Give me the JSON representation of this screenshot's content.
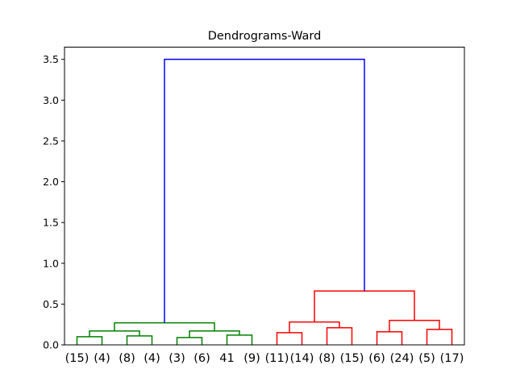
{
  "chart_data": {
    "type": "dendrogram",
    "title": "Dendrograms-Ward",
    "xlabel": "",
    "ylabel": "",
    "ylim": [
      0,
      3.65
    ],
    "yticks": [
      0.0,
      0.5,
      1.0,
      1.5,
      2.0,
      2.5,
      3.0,
      3.5
    ],
    "ytick_labels": [
      "0.0",
      "0.5",
      "1.0",
      "1.5",
      "2.0",
      "2.5",
      "3.0",
      "3.5"
    ],
    "grid": false,
    "leaf_labels": [
      "(15)",
      "(4)",
      "(8)",
      "(4)",
      "(3)",
      "(6)",
      "41",
      "(9)",
      "(11)",
      "(14)",
      "(8)",
      "(15)",
      "(6)",
      "(24)",
      "(5)",
      "(17)"
    ],
    "colors": {
      "left_cluster": "#008000",
      "right_cluster": "#ff0000",
      "root": "#0000ff"
    },
    "links": [
      {
        "left": 0,
        "right": 1,
        "height": 0.1,
        "color": "#008000"
      },
      {
        "left": 2,
        "right": 3,
        "height": 0.11,
        "color": "#008000"
      },
      {
        "left": 4,
        "right": 5,
        "height": 0.09,
        "color": "#008000"
      },
      {
        "left": 6,
        "right": 7,
        "height": 0.12,
        "color": "#008000"
      },
      {
        "left": 8,
        "right": 9,
        "height": 0.15,
        "color": "#ff0000"
      },
      {
        "left": 10,
        "right": 11,
        "height": 0.21,
        "color": "#ff0000"
      },
      {
        "left": 12,
        "right": 13,
        "height": 0.16,
        "color": "#ff0000"
      },
      {
        "left": 14,
        "right": 15,
        "height": 0.19,
        "color": "#ff0000"
      },
      {
        "left": 16,
        "right": 17,
        "height": 0.17,
        "color": "#008000"
      },
      {
        "left": 18,
        "right": 19,
        "height": 0.17,
        "color": "#008000"
      },
      {
        "left": 20,
        "right": 21,
        "height": 0.28,
        "color": "#ff0000"
      },
      {
        "left": 22,
        "right": 23,
        "height": 0.3,
        "color": "#ff0000"
      },
      {
        "left": 24,
        "right": 25,
        "height": 0.27,
        "color": "#008000"
      },
      {
        "left": 26,
        "right": 27,
        "height": 0.66,
        "color": "#ff0000"
      },
      {
        "left": 28,
        "right": 29,
        "height": 3.5,
        "color": "#0000ff"
      }
    ]
  }
}
